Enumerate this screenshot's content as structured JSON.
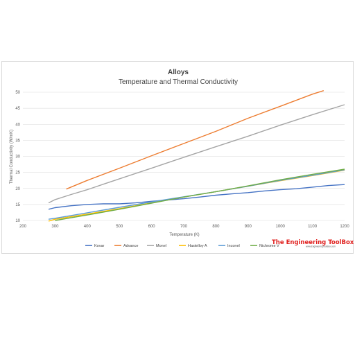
{
  "chart_data": {
    "type": "line",
    "title": "Alloys",
    "subtitle": "Temperature and Thermal Conductivity",
    "xlabel": "Temperature (K)",
    "ylabel": "Thermal Conductivity (W/mK)",
    "xlim": [
      200,
      1200
    ],
    "ylim": [
      10,
      50
    ],
    "xticks": [
      200,
      300,
      400,
      500,
      600,
      700,
      800,
      900,
      1000,
      1100,
      1200
    ],
    "yticks": [
      10,
      15,
      20,
      25,
      30,
      35,
      40,
      45,
      50
    ],
    "grid": true,
    "legend": "bottom",
    "series": [
      {
        "name": "Kovar",
        "color": "#4472c4",
        "x": [
          280,
          300,
          350,
          400,
          450,
          500,
          550,
          600,
          650,
          700,
          750,
          800,
          850,
          900,
          950,
          1000,
          1050,
          1100,
          1150,
          1200
        ],
        "y": [
          13.5,
          14.0,
          14.6,
          15.0,
          15.2,
          15.2,
          15.5,
          16.0,
          16.4,
          16.8,
          17.3,
          17.9,
          18.3,
          18.7,
          19.2,
          19.6,
          19.9,
          20.4,
          20.9,
          21.2
        ]
      },
      {
        "name": "Advance",
        "color": "#ed7d31",
        "x": [
          335,
          400,
          500,
          600,
          700,
          800,
          900,
          1000,
          1100,
          1135
        ],
        "y": [
          19.8,
          22.5,
          26.3,
          30.2,
          34.0,
          37.8,
          41.9,
          45.6,
          49.4,
          50.5
        ]
      },
      {
        "name": "Monel",
        "color": "#a5a5a5",
        "x": [
          280,
          300,
          350,
          400,
          450,
          500,
          600,
          700,
          800,
          900,
          1000,
          1100,
          1200
        ],
        "y": [
          15.5,
          16.5,
          18.1,
          19.6,
          21.3,
          23.0,
          26.3,
          29.7,
          33.0,
          36.3,
          39.7,
          43.0,
          46.1
        ]
      },
      {
        "name": "Hastelloy A",
        "color": "#ffc000",
        "x": [
          280,
          300,
          400,
          500,
          600,
          700,
          800,
          900,
          1000,
          1100,
          1200
        ],
        "y": [
          9.8,
          10.4,
          12.0,
          13.7,
          15.5,
          17.3,
          19.0,
          20.7,
          22.4,
          24.0,
          25.7
        ]
      },
      {
        "name": "Inconel",
        "color": "#5b9bd5",
        "x": [
          280,
          300,
          400,
          500,
          600,
          700,
          800,
          900,
          1000,
          1100,
          1200
        ],
        "y": [
          10.4,
          10.7,
          12.4,
          14.1,
          15.8,
          17.4,
          19.0,
          20.7,
          22.5,
          24.1,
          25.8
        ]
      },
      {
        "name": "Nichrome V",
        "color": "#70ad47",
        "x": [
          300,
          400,
          500,
          600,
          700,
          800,
          900,
          1000,
          1100,
          1200
        ],
        "y": [
          10.0,
          11.7,
          13.5,
          15.4,
          17.3,
          19.0,
          20.8,
          22.7,
          24.4,
          26.0
        ]
      }
    ]
  },
  "branding": {
    "name": "The Engineering ToolBox",
    "url": "www.EngineeringToolBox.com"
  }
}
